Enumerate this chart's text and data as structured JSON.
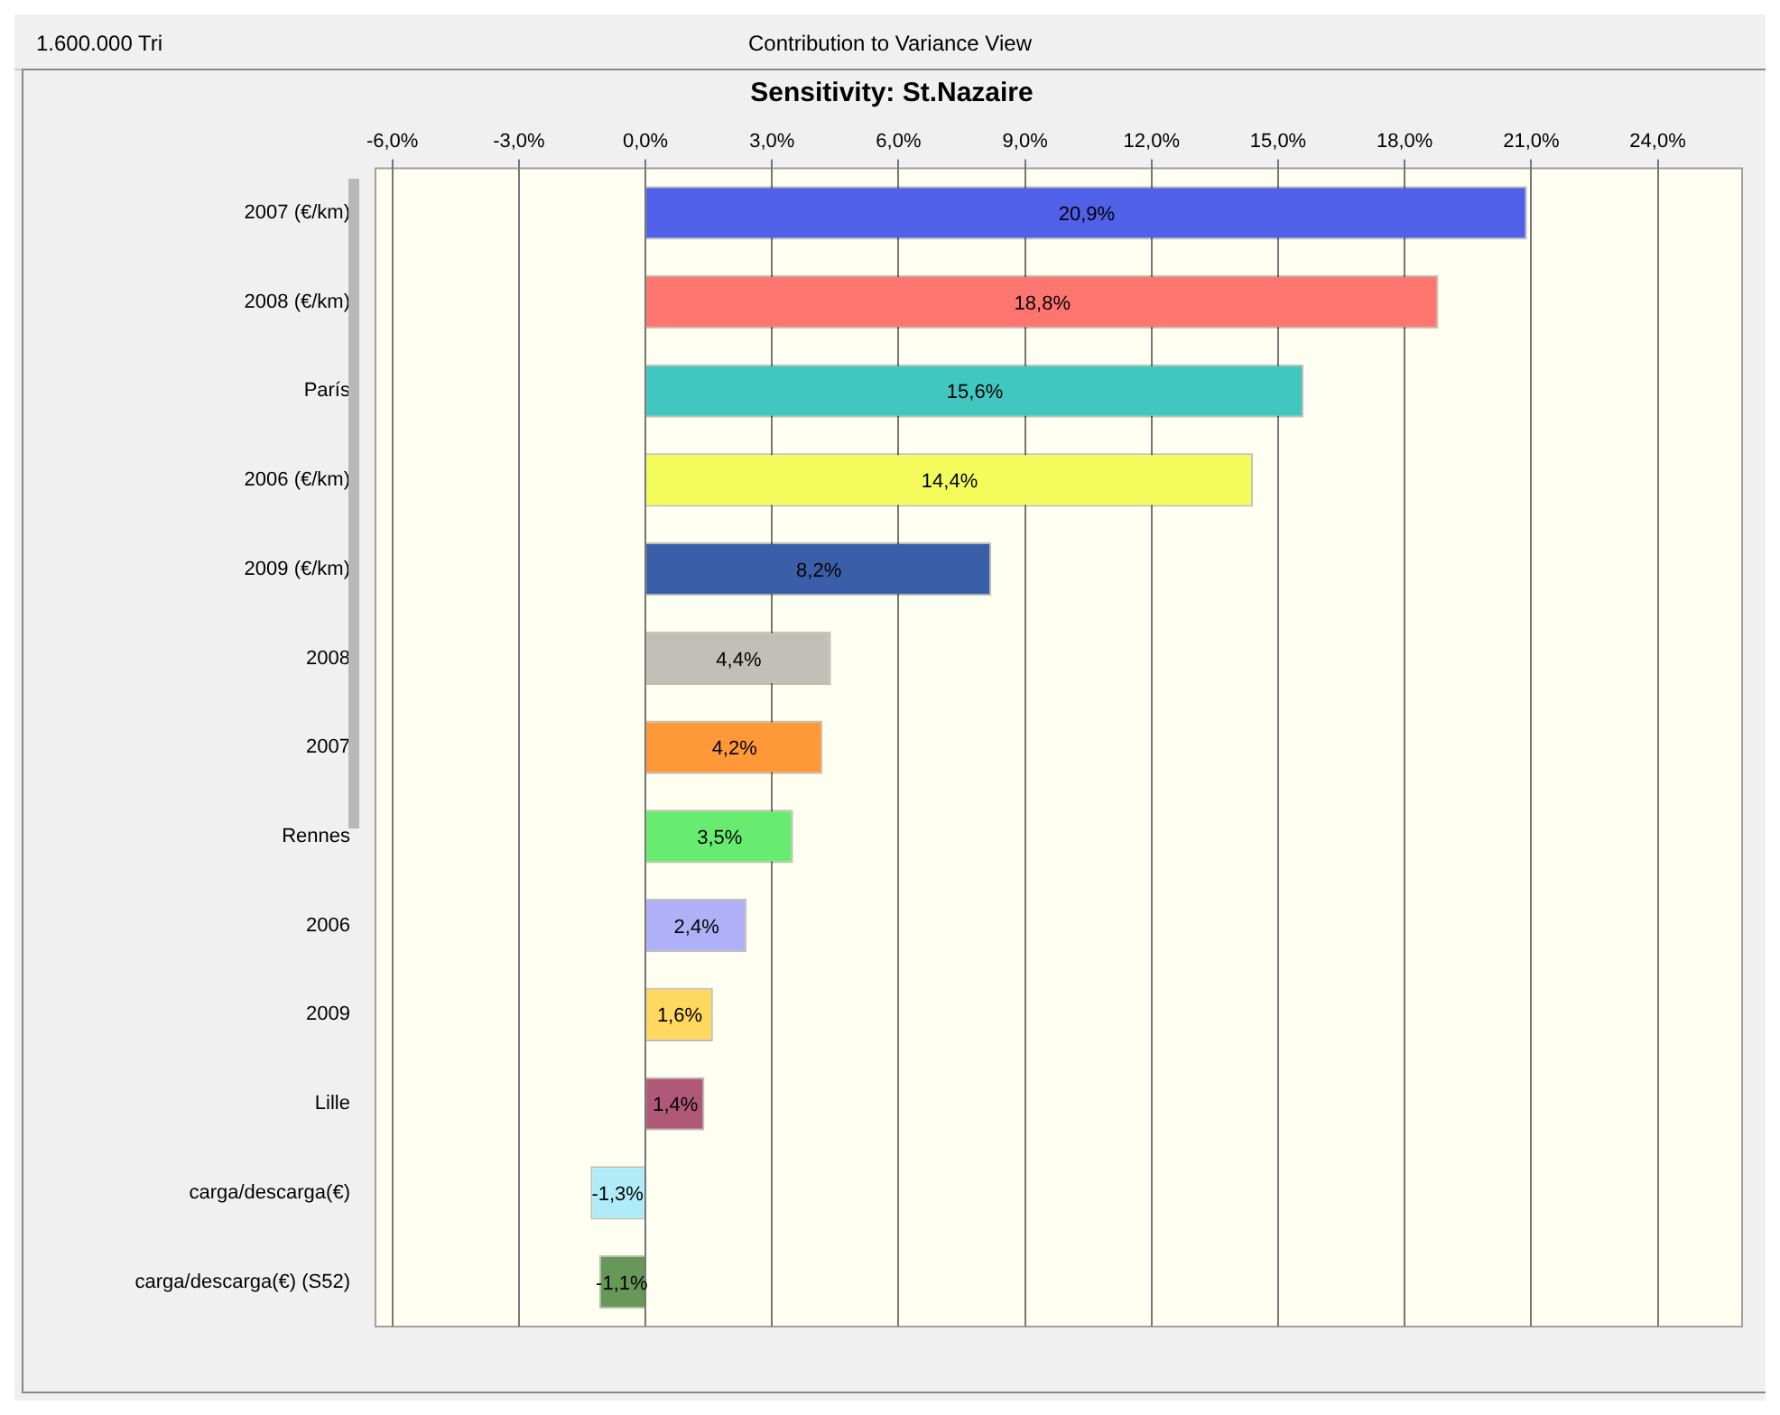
{
  "chart_data": {
    "type": "bar",
    "orientation": "horizontal",
    "title": "Sensitivity: St.Nazaire",
    "subtitle": "Contribution to Variance View",
    "annotations": [
      "1.600.000 Tri"
    ],
    "categories": [
      "2007 (€/km)",
      "2008 (€/km)",
      "París",
      "2006 (€/km)",
      "2009 (€/km)",
      "2008",
      "2007",
      "Rennes",
      "2006",
      "2009",
      "Lille",
      "carga/descarga(€)",
      "carga/descarga(€) (S52)"
    ],
    "values": [
      20.9,
      18.8,
      15.6,
      14.4,
      8.2,
      4.4,
      4.2,
      3.5,
      2.4,
      1.6,
      1.4,
      -1.3,
      -1.1
    ],
    "value_labels": [
      "20,9%",
      "18,8%",
      "15,6%",
      "14,4%",
      "8,2%",
      "4,4%",
      "4,2%",
      "3,5%",
      "2,4%",
      "1,6%",
      "1,4%",
      "-1,3%",
      "-1,1%"
    ],
    "colors": [
      "#5060e8",
      "#ff7570",
      "#40c8c0",
      "#f4fc5c",
      "#3a5fa8",
      "#c0c0b8",
      "#ff9838",
      "#68ec70",
      "#b0b0f8",
      "#ffd860",
      "#b05878",
      "#b0ecf8",
      "#689858"
    ],
    "xlim": [
      -6.4,
      26
    ],
    "xticks": [
      {
        "value": -6,
        "label": "-6,0%"
      },
      {
        "value": -3,
        "label": "-3,0%"
      },
      {
        "value": 0,
        "label": "0,0%"
      },
      {
        "value": 3,
        "label": "3,0%"
      },
      {
        "value": 6,
        "label": "6,0%"
      },
      {
        "value": 9,
        "label": "9,0%"
      },
      {
        "value": 12,
        "label": "12,0%"
      },
      {
        "value": 15,
        "label": "15,0%"
      },
      {
        "value": 18,
        "label": "18,0%"
      },
      {
        "value": 21,
        "label": "21,0%"
      },
      {
        "value": 24,
        "label": "24,0%"
      }
    ],
    "grid": "x",
    "legend": false
  }
}
